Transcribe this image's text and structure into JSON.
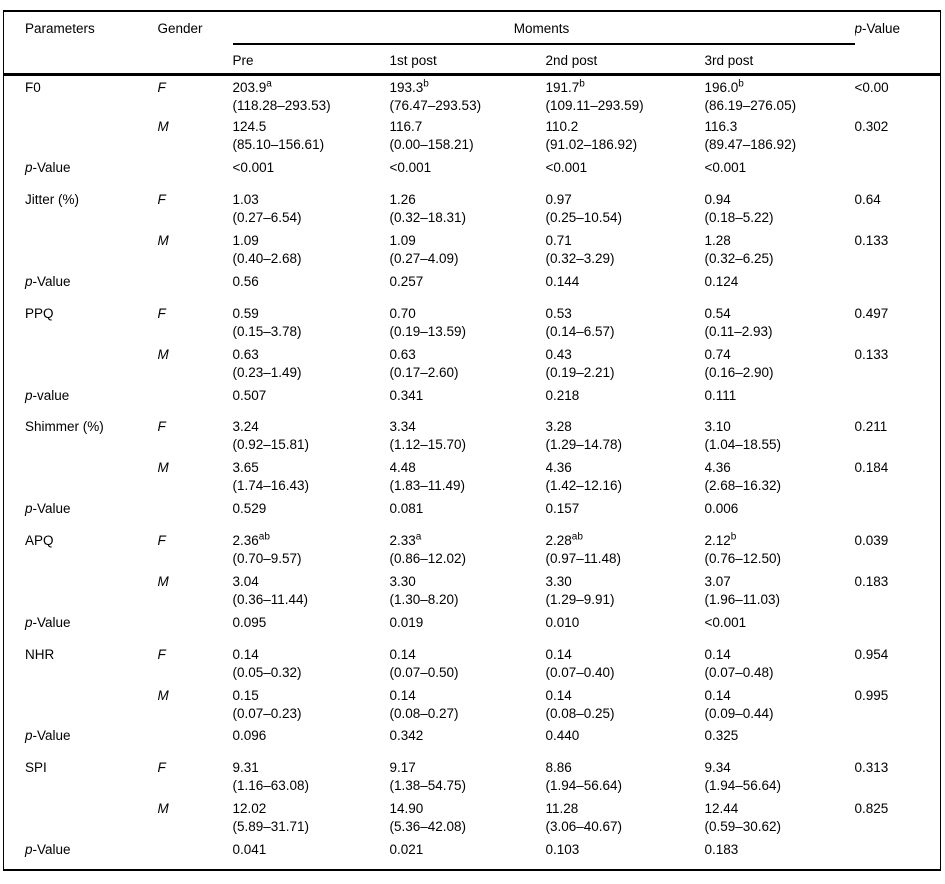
{
  "colors": {
    "text": "#000000",
    "background": "#ffffff",
    "rule": "#000000"
  },
  "header": {
    "parameters": "Parameters",
    "gender": "Gender",
    "moments": "Moments",
    "p_value_label": {
      "lead": "p",
      "rest": "-Value"
    },
    "moment_columns": [
      "Pre",
      "1st post",
      "2nd post",
      "3rd post"
    ]
  },
  "sections": [
    {
      "parameter": "F0",
      "rows": [
        {
          "gender": "F",
          "cells": [
            {
              "value": "203.9",
              "sup": "a",
              "range": "(118.28–293.53)"
            },
            {
              "value": "193.3",
              "sup": "b",
              "range": "(76.47–293.53)"
            },
            {
              "value": "191.7",
              "sup": "b",
              "range": "(109.11–293.59)"
            },
            {
              "value": "196.0",
              "sup": "b",
              "range": "(86.19–276.05)"
            }
          ],
          "p": "<0.00"
        },
        {
          "gender": "M",
          "cells": [
            {
              "value": "124.5",
              "range": "(85.10–156.61)"
            },
            {
              "value": "116.7",
              "range": "(0.00–158.21)"
            },
            {
              "value": "110.2",
              "range": "(91.02–186.92)"
            },
            {
              "value": "116.3",
              "range": "(89.47–186.92)"
            }
          ],
          "p": "0.302"
        }
      ],
      "p_row": {
        "label": "p-Value",
        "values": [
          "<0.001",
          "<0.001",
          "<0.001",
          "<0.001"
        ]
      }
    },
    {
      "parameter": "Jitter (%)",
      "rows": [
        {
          "gender": "F",
          "cells": [
            {
              "value": "1.03",
              "range": "(0.27–6.54)"
            },
            {
              "value": "1.26",
              "range": "(0.32–18.31)"
            },
            {
              "value": "0.97",
              "range": "(0.25–10.54)"
            },
            {
              "value": "0.94",
              "range": "(0.18–5.22)"
            }
          ],
          "p": "0.64"
        },
        {
          "gender": "M",
          "cells": [
            {
              "value": "1.09",
              "range": "(0.40–2.68)"
            },
            {
              "value": "1.09",
              "range": "(0.27–4.09)"
            },
            {
              "value": "0.71",
              "range": "(0.32–3.29)"
            },
            {
              "value": "1.28",
              "range": "(0.32–6.25)"
            }
          ],
          "p": "0.133"
        }
      ],
      "p_row": {
        "label": "p-Value",
        "values": [
          "0.56",
          "0.257",
          "0.144",
          "0.124"
        ]
      }
    },
    {
      "parameter": "PPQ",
      "rows": [
        {
          "gender": "F",
          "cells": [
            {
              "value": "0.59",
              "range": "(0.15–3.78)"
            },
            {
              "value": "0.70",
              "range": "(0.19–13.59)"
            },
            {
              "value": "0.53",
              "range": "(0.14–6.57)"
            },
            {
              "value": "0.54",
              "range": "(0.11–2.93)"
            }
          ],
          "p": "0.497"
        },
        {
          "gender": "M",
          "cells": [
            {
              "value": "0.63",
              "range": "(0.23–1.49)"
            },
            {
              "value": "0.63",
              "range": "(0.17–2.60)"
            },
            {
              "value": "0.43",
              "range": "(0.19–2.21)"
            },
            {
              "value": "0.74",
              "range": "(0.16–2.90)"
            }
          ],
          "p": "0.133"
        }
      ],
      "p_row": {
        "label": "p-value",
        "values": [
          "0.507",
          "0.341",
          "0.218",
          "0.111"
        ]
      }
    },
    {
      "parameter": "Shimmer (%)",
      "rows": [
        {
          "gender": "F",
          "cells": [
            {
              "value": "3.24",
              "range": "(0.92–15.81)"
            },
            {
              "value": "3.34",
              "range": "(1.12–15.70)"
            },
            {
              "value": "3.28",
              "range": "(1.29–14.78)"
            },
            {
              "value": "3.10",
              "range": "(1.04–18.55)"
            }
          ],
          "p": "0.211"
        },
        {
          "gender": "M",
          "cells": [
            {
              "value": "3.65",
              "range": "(1.74–16.43)"
            },
            {
              "value": "4.48",
              "range": "(1.83–11.49)"
            },
            {
              "value": "4.36",
              "range": "(1.42–12.16)"
            },
            {
              "value": "4.36",
              "range": "(2.68–16.32)"
            }
          ],
          "p": "0.184"
        }
      ],
      "p_row": {
        "label": "p-Value",
        "values": [
          "0.529",
          "0.081",
          "0.157",
          "0.006"
        ]
      }
    },
    {
      "parameter": "APQ",
      "rows": [
        {
          "gender": "F",
          "cells": [
            {
              "value": "2.36",
              "sup": "ab",
              "range": "(0.70–9.57)"
            },
            {
              "value": "2.33",
              "sup": "a",
              "range": "(0.86–12.02)"
            },
            {
              "value": "2.28",
              "sup": "ab",
              "range": "(0.97–11.48)"
            },
            {
              "value": "2.12",
              "sup": "b",
              "range": "(0.76–12.50)"
            }
          ],
          "p": "0.039"
        },
        {
          "gender": "M",
          "cells": [
            {
              "value": "3.04",
              "range": "(0.36–11.44)"
            },
            {
              "value": "3.30",
              "range": "(1.30–8.20)"
            },
            {
              "value": "3.30",
              "range": "(1.29–9.91)"
            },
            {
              "value": "3.07",
              "range": "(1.96–11.03)"
            }
          ],
          "p": "0.183"
        }
      ],
      "p_row": {
        "label": "p-Value",
        "values": [
          "0.095",
          "0.019",
          "0.010",
          "<0.001"
        ]
      }
    },
    {
      "parameter": "NHR",
      "rows": [
        {
          "gender": "F",
          "cells": [
            {
              "value": "0.14",
              "range": "(0.05–0.32)"
            },
            {
              "value": "0.14",
              "range": "(0.07–0.50)"
            },
            {
              "value": "0.14",
              "range": "(0.07–0.40)"
            },
            {
              "value": "0.14",
              "range": "(0.07–0.48)"
            }
          ],
          "p": "0.954"
        },
        {
          "gender": "M",
          "cells": [
            {
              "value": "0.15",
              "range": "(0.07–0.23)"
            },
            {
              "value": "0.14",
              "range": "(0.08–0.27)"
            },
            {
              "value": "0.14",
              "range": "(0.08–0.25)"
            },
            {
              "value": "0.14",
              "range": "(0.09–0.44)"
            }
          ],
          "p": "0.995"
        }
      ],
      "p_row": {
        "label": "p-Value",
        "values": [
          "0.096",
          "0.342",
          "0.440",
          "0.325"
        ]
      }
    },
    {
      "parameter": "SPI",
      "rows": [
        {
          "gender": "F",
          "cells": [
            {
              "value": "9.31",
              "range": "(1.16–63.08)"
            },
            {
              "value": "9.17",
              "range": "(1.38–54.75)"
            },
            {
              "value": "8.86",
              "range": "(1.94–56.64)"
            },
            {
              "value": "9.34",
              "range": "(1.94–56.64)"
            }
          ],
          "p": "0.313"
        },
        {
          "gender": "M",
          "cells": [
            {
              "value": "12.02",
              "range": "(5.89–31.71)"
            },
            {
              "value": "14.90",
              "range": "(5.36–42.08)"
            },
            {
              "value": "11.28",
              "range": "(3.06–40.67)"
            },
            {
              "value": "12.44",
              "range": "(0.59–30.62)"
            }
          ],
          "p": "0.825"
        }
      ],
      "p_row": {
        "label": "p-Value",
        "values": [
          "0.041",
          "0.021",
          "0.103",
          "0.183"
        ]
      }
    }
  ]
}
